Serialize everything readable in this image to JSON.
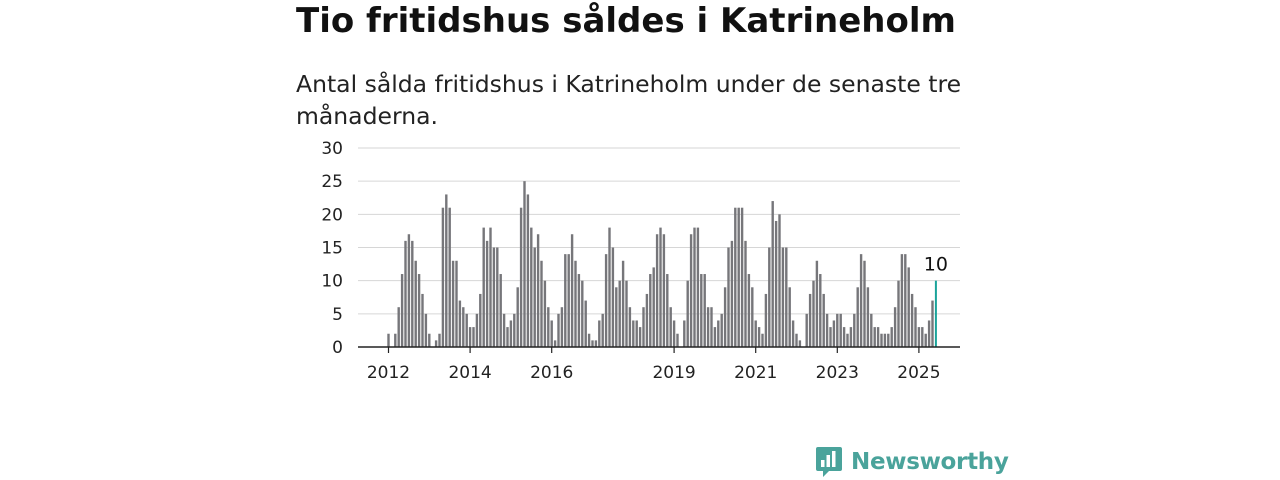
{
  "title": "Tio fritidshus såldes i Katrineholm",
  "subtitle": "Antal sålda fritidshus i Katrineholm under de senaste tre månaderna.",
  "brand": {
    "name": "Newsworthy",
    "icon": "newsworthy-logo-icon",
    "color": "#4aa39b"
  },
  "colors": {
    "bar": "#76767a",
    "highlight": "#1aa39a",
    "grid": "#d6d6d6",
    "axis": "#222222"
  },
  "chart_data": {
    "type": "bar",
    "ylim": [
      0,
      30
    ],
    "y_ticks": [
      0,
      5,
      10,
      15,
      20,
      25,
      30
    ],
    "grid": true,
    "x_tick_labels": [
      {
        "label": "2012",
        "index": 0
      },
      {
        "label": "2014",
        "index": 24
      },
      {
        "label": "2016",
        "index": 48
      },
      {
        "label": "2019",
        "index": 84
      },
      {
        "label": "2021",
        "index": 108
      },
      {
        "label": "2023",
        "index": 132
      },
      {
        "label": "2025",
        "index": 156
      }
    ],
    "first_bar_start_index": -9,
    "values": [
      0,
      0,
      0,
      0,
      0,
      0,
      0,
      0,
      0,
      2,
      0,
      2,
      6,
      11,
      16,
      17,
      16,
      13,
      11,
      8,
      5,
      2,
      0,
      1,
      2,
      21,
      23,
      21,
      13,
      13,
      7,
      6,
      5,
      3,
      3,
      5,
      8,
      18,
      16,
      18,
      15,
      15,
      11,
      5,
      3,
      4,
      5,
      9,
      21,
      25,
      23,
      18,
      15,
      17,
      13,
      10,
      6,
      4,
      1,
      5,
      6,
      14,
      14,
      17,
      13,
      11,
      10,
      7,
      2,
      1,
      1,
      4,
      5,
      14,
      18,
      15,
      9,
      10,
      13,
      10,
      6,
      4,
      4,
      3,
      6,
      8,
      11,
      12,
      17,
      18,
      17,
      11,
      6,
      4,
      2,
      0,
      4,
      10,
      17,
      18,
      18,
      11,
      11,
      6,
      6,
      3,
      4,
      5,
      9,
      15,
      16,
      21,
      21,
      21,
      16,
      11,
      9,
      4,
      3,
      2,
      8,
      15,
      22,
      19,
      20,
      15,
      15,
      9,
      4,
      2,
      1,
      0,
      5,
      8,
      10,
      13,
      11,
      8,
      5,
      3,
      4,
      5,
      5,
      3,
      2,
      3,
      5,
      9,
      14,
      13,
      9,
      5,
      3,
      3,
      2,
      2,
      2,
      3,
      6,
      10,
      14,
      14,
      12,
      8,
      6,
      3,
      3,
      2,
      4,
      7,
      10
    ],
    "last_value_label": "10"
  }
}
